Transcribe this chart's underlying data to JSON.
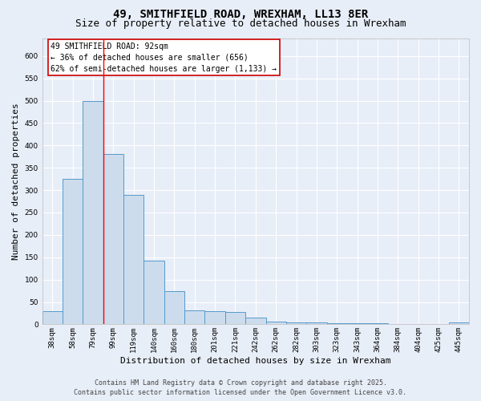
{
  "title": "49, SMITHFIELD ROAD, WREXHAM, LL13 8ER",
  "subtitle": "Size of property relative to detached houses in Wrexham",
  "xlabel": "Distribution of detached houses by size in Wrexham",
  "ylabel": "Number of detached properties",
  "categories": [
    "38sqm",
    "58sqm",
    "79sqm",
    "99sqm",
    "119sqm",
    "140sqm",
    "160sqm",
    "180sqm",
    "201sqm",
    "221sqm",
    "242sqm",
    "262sqm",
    "282sqm",
    "303sqm",
    "323sqm",
    "343sqm",
    "364sqm",
    "384sqm",
    "404sqm",
    "425sqm",
    "445sqm"
  ],
  "values": [
    30,
    325,
    500,
    380,
    290,
    143,
    75,
    32,
    30,
    27,
    15,
    7,
    4,
    4,
    3,
    2,
    3,
    1,
    1,
    1,
    5
  ],
  "bar_color": "#ccdcec",
  "bar_edge_color": "#5599cc",
  "red_line_index": 2,
  "annotation_title": "49 SMITHFIELD ROAD: 92sqm",
  "annotation_line2": "← 36% of detached houses are smaller (656)",
  "annotation_line3": "62% of semi-detached houses are larger (1,133) →",
  "annotation_box_color": "#ffffff",
  "annotation_box_edge": "#cc0000",
  "footer_line1": "Contains HM Land Registry data © Crown copyright and database right 2025.",
  "footer_line2": "Contains public sector information licensed under the Open Government Licence v3.0.",
  "ylim": [
    0,
    640
  ],
  "yticks": [
    0,
    50,
    100,
    150,
    200,
    250,
    300,
    350,
    400,
    450,
    500,
    550,
    600
  ],
  "bg_color": "#e8eef8",
  "plot_bg_color": "#e8eef8",
  "title_fontsize": 10,
  "subtitle_fontsize": 9,
  "tick_fontsize": 6.5,
  "label_fontsize": 8,
  "footer_fontsize": 6,
  "annotation_fontsize": 7
}
